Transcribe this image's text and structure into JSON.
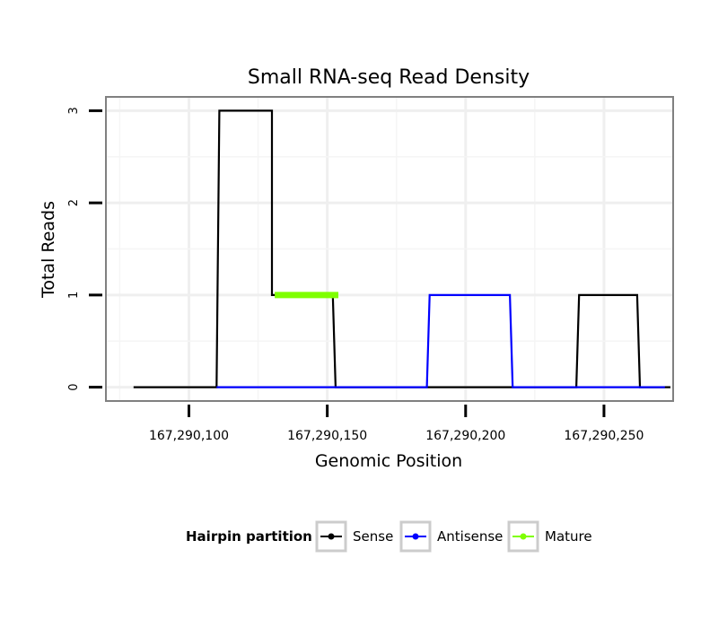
{
  "chart_data": {
    "type": "line",
    "title": "Small RNA-seq Read Density",
    "xlabel": "Genomic Position",
    "ylabel": "Total Reads",
    "xlim": [
      167290070,
      167290275
    ],
    "ylim": [
      -0.15,
      3.15
    ],
    "x_ticks": [
      167290100,
      167290150,
      167290200,
      167290250
    ],
    "x_tick_labels": [
      "167,290,100",
      "167,290,150",
      "167,290,200",
      "167,290,250"
    ],
    "y_ticks": [
      0,
      1,
      2,
      3
    ],
    "y_tick_labels": [
      "0",
      "1",
      "2",
      "3"
    ],
    "grid": true,
    "legend_title": "Hairpin partition",
    "legend_position": "bottom",
    "series": [
      {
        "name": "Sense",
        "color": "#000000",
        "x": [
          167290080,
          167290110,
          167290111,
          167290130,
          167290130,
          167290152,
          167290153,
          167290240,
          167290241,
          167290262,
          167290263,
          167290274
        ],
        "y": [
          0,
          0,
          3,
          3,
          1,
          1,
          0,
          0,
          1,
          1,
          0,
          0
        ]
      },
      {
        "name": "Antisense",
        "color": "#0000ff",
        "x": [
          167290110,
          167290186,
          167290187,
          167290216,
          167290217,
          167290272
        ],
        "y": [
          0,
          0,
          1,
          1,
          0,
          0
        ]
      },
      {
        "name": "Mature",
        "color": "#7fff00",
        "x": [
          167290131,
          167290154
        ],
        "y": [
          1,
          1
        ]
      }
    ]
  }
}
